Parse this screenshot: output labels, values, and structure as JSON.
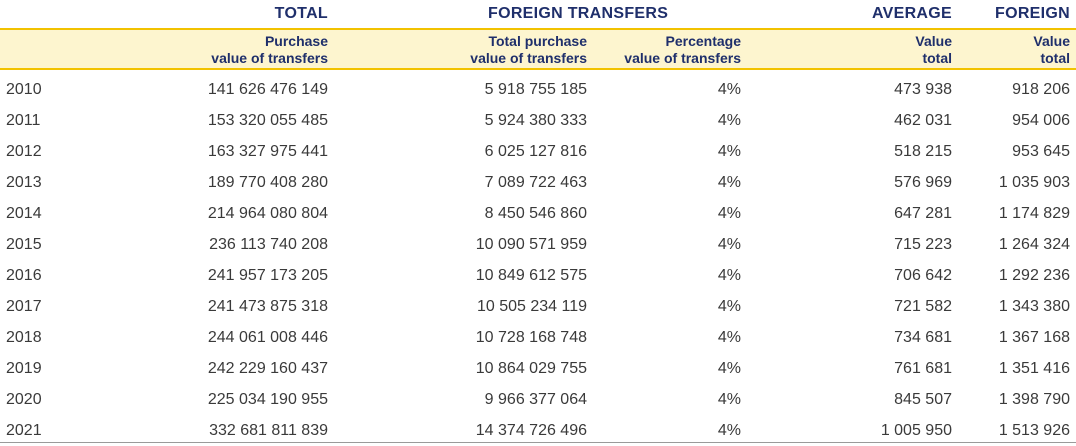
{
  "groups": {
    "total": "TOTAL",
    "foreign_transfers": "FOREIGN TRANSFERS",
    "average": "AVERAGE",
    "foreign": "FOREIGN"
  },
  "subheaders": {
    "total_purchase": [
      "Purchase",
      "value of transfers"
    ],
    "foreign_total_purchase": [
      "Total purchase",
      "value of transfers"
    ],
    "foreign_percentage": [
      "Percentage",
      "value of  transfers"
    ],
    "average_value": [
      "Value",
      "total"
    ],
    "foreign_value": [
      "Value",
      "total"
    ]
  },
  "rows": [
    {
      "year": "2010",
      "total_purchase": "141 626 476 149",
      "foreign_purchase": "5 918 755 185",
      "percentage": "4%",
      "average_value": "473 938",
      "foreign_value": "918 206"
    },
    {
      "year": "2011",
      "total_purchase": "153 320 055 485",
      "foreign_purchase": "5 924 380 333",
      "percentage": "4%",
      "average_value": "462 031",
      "foreign_value": "954 006"
    },
    {
      "year": "2012",
      "total_purchase": "163 327 975 441",
      "foreign_purchase": "6 025 127 816",
      "percentage": "4%",
      "average_value": "518 215",
      "foreign_value": "953 645"
    },
    {
      "year": "2013",
      "total_purchase": "189 770 408 280",
      "foreign_purchase": "7 089 722 463",
      "percentage": "4%",
      "average_value": "576 969",
      "foreign_value": "1 035 903"
    },
    {
      "year": "2014",
      "total_purchase": "214 964 080 804",
      "foreign_purchase": "8 450 546 860",
      "percentage": "4%",
      "average_value": "647 281",
      "foreign_value": "1 174 829"
    },
    {
      "year": "2015",
      "total_purchase": "236 113 740 208",
      "foreign_purchase": "10 090 571 959",
      "percentage": "4%",
      "average_value": "715 223",
      "foreign_value": "1 264 324"
    },
    {
      "year": "2016",
      "total_purchase": "241 957 173 205",
      "foreign_purchase": "10 849 612 575",
      "percentage": "4%",
      "average_value": "706 642",
      "foreign_value": "1 292 236"
    },
    {
      "year": "2017",
      "total_purchase": "241 473 875 318",
      "foreign_purchase": "10 505 234 119",
      "percentage": "4%",
      "average_value": "721 582",
      "foreign_value": "1 343 380"
    },
    {
      "year": "2018",
      "total_purchase": "244 061 008 446",
      "foreign_purchase": "10 728 168 748",
      "percentage": "4%",
      "average_value": "734 681",
      "foreign_value": "1 367 168"
    },
    {
      "year": "2019",
      "total_purchase": "242 229 160 437",
      "foreign_purchase": "10 864 029 755",
      "percentage": "4%",
      "average_value": "761 681",
      "foreign_value": "1 351 416"
    },
    {
      "year": "2020",
      "total_purchase": "225 034 190 955",
      "foreign_purchase": "9 966 377 064",
      "percentage": "4%",
      "average_value": "845 507",
      "foreign_value": "1 398 790"
    },
    {
      "year": "2021",
      "total_purchase": "332 681 811 839",
      "foreign_purchase": "14 374 726 496",
      "percentage": "4%",
      "average_value": "1 005 950",
      "foreign_value": "1 513 926"
    }
  ],
  "colors": {
    "header_text": "#1f2f6b",
    "header_band": "#fdf5cf",
    "header_rule": "#f2c200",
    "body_text": "#3a3a3a"
  }
}
